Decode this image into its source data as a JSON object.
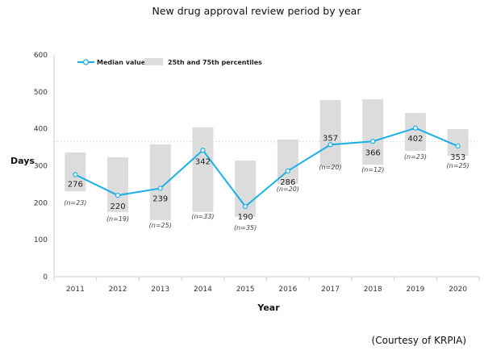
{
  "chart_data": {
    "type": "line",
    "title": "New drug approval review period by year",
    "xlabel": "Year",
    "ylabel": "Days",
    "ylim": [
      0,
      600
    ],
    "yticks": [
      0,
      100,
      200,
      300,
      400,
      500,
      600
    ],
    "categories": [
      "2011",
      "2012",
      "2013",
      "2014",
      "2015",
      "2016",
      "2017",
      "2018",
      "2019",
      "2020"
    ],
    "series": [
      {
        "name": "Median value",
        "type": "line",
        "color": "#1AAFE6",
        "values": [
          276,
          220,
          239,
          342,
          190,
          286,
          357,
          366,
          402,
          353
        ]
      },
      {
        "name": "25th and 75th percentiles",
        "type": "range-bar",
        "color": "#DCDCDC",
        "low": [
          231,
          175,
          153,
          175,
          161,
          251,
          297,
          303,
          340,
          327
        ],
        "high": [
          336,
          323,
          358,
          404,
          314,
          371,
          478,
          480,
          443,
          399
        ]
      }
    ],
    "sample_sizes": [
      "(n=23)",
      "(n=19)",
      "(n=25)",
      "(n=33)",
      "(n=35)",
      "(n=20)",
      "(n=20)",
      "(n=12)",
      "(n=23)",
      "(n=25)"
    ],
    "reference_line": 365,
    "grid": false,
    "legend": "top-left",
    "credit": "(Courtesy of KRPIA)"
  }
}
